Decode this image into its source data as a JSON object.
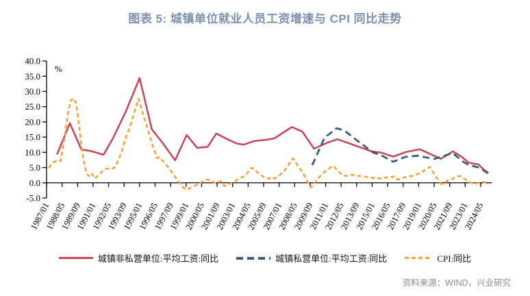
{
  "title": "图表 5: 城镇单位就业人员工资增速与 CPI 同比走势",
  "source": "资料来源：WIND，兴业研究",
  "unit_label": "%",
  "colors": {
    "title": "#7C90AC",
    "axis": "#000000",
    "source_text": "#8A8A8A",
    "wage_nonprivate": "#C4495C",
    "wage_private": "#3D5A78",
    "cpi": "#F2A33C"
  },
  "legend": [
    {
      "label": "城镇非私营单位:平均工资:同比",
      "series": "wage_nonprivate",
      "style": "solid"
    },
    {
      "label": "城镇私营单位:平均工资:同比",
      "series": "wage_private",
      "style": "long-dash"
    },
    {
      "label": "CPI:同比",
      "series": "cpi",
      "style": "short-dash"
    }
  ],
  "chart_data": {
    "type": "line",
    "title": "图表 5: 城镇单位就业人员工资增速与 CPI 同比走势",
    "xlabel": "",
    "ylabel": "%",
    "grid": "off",
    "legend_position": "bottom",
    "x_axis": {
      "unit": "decimal_year",
      "min": 1987.0,
      "max": 2025.1,
      "tick_interval_months": 16,
      "tick_labels": [
        "1987/01",
        "1988/05",
        "1989/09",
        "1991/01",
        "1992/05",
        "1993/09",
        "1995/01",
        "1996/05",
        "1997/09",
        "1999/01",
        "2000/05",
        "2001/09",
        "2003/01",
        "2004/05",
        "2005/09",
        "2007/01",
        "2008/05",
        "2009/09",
        "2011/01",
        "2012/05",
        "2013/09",
        "2015/01",
        "2016/05",
        "2017/09",
        "2019/01",
        "2020/05",
        "2021/09",
        "2023/01",
        "2024/05"
      ]
    },
    "y_axis": {
      "min": -5.0,
      "max": 40.0,
      "tick_step": 5.0,
      "ticks": [
        "40.0",
        "35.0",
        "30.0",
        "25.0",
        "20.0",
        "15.0",
        "10.0",
        "5.0",
        "0.0",
        "-5.0"
      ],
      "unit": "%"
    },
    "series": [
      {
        "name": "城镇非私营单位:平均工资:同比",
        "key": "wage_nonprivate",
        "color": "#C4495C",
        "line_style": "solid",
        "dash": null,
        "points": [
          [
            1987.9,
            9.3
          ],
          [
            1989.0,
            19.6
          ],
          [
            1990.0,
            10.9
          ],
          [
            1990.85,
            10.4
          ],
          [
            1991.9,
            9.2
          ],
          [
            1992.75,
            14.9
          ],
          [
            1993.8,
            23.3
          ],
          [
            1995.0,
            34.4
          ],
          [
            1996.05,
            17.6
          ],
          [
            1997.0,
            13.0
          ],
          [
            1998.05,
            7.4
          ],
          [
            1999.05,
            15.7
          ],
          [
            1999.95,
            11.5
          ],
          [
            2000.85,
            11.8
          ],
          [
            2001.6,
            16.2
          ],
          [
            2002.5,
            14.4
          ],
          [
            2003.35,
            12.9
          ],
          [
            2003.95,
            12.5
          ],
          [
            2004.85,
            13.7
          ],
          [
            2005.85,
            14.1
          ],
          [
            2006.6,
            14.6
          ],
          [
            2007.4,
            16.6
          ],
          [
            2008.1,
            18.3
          ],
          [
            2009.0,
            16.8
          ],
          [
            2010.0,
            11.2
          ],
          [
            2011.1,
            13.1
          ],
          [
            2012.0,
            14.3
          ],
          [
            2013.0,
            13.0
          ],
          [
            2014.0,
            11.6
          ],
          [
            2014.9,
            10.4
          ],
          [
            2015.8,
            9.9
          ],
          [
            2016.8,
            8.6
          ],
          [
            2017.9,
            10.1
          ],
          [
            2019.1,
            11.0
          ],
          [
            2019.9,
            9.6
          ],
          [
            2020.9,
            7.9
          ],
          [
            2021.95,
            10.3
          ],
          [
            2022.7,
            8.5
          ],
          [
            2023.3,
            6.6
          ],
          [
            2023.85,
            6.2
          ],
          [
            2024.15,
            6.0
          ],
          [
            2024.6,
            4.3
          ],
          [
            2025.0,
            3.2
          ]
        ]
      },
      {
        "name": "城镇私营单位:平均工资:同比",
        "key": "wage_private",
        "color": "#3D5A78",
        "line_style": "dashed",
        "dash": [
          10,
          6
        ],
        "points": [
          [
            2009.85,
            5.8
          ],
          [
            2010.9,
            14.8
          ],
          [
            2011.95,
            17.9
          ],
          [
            2012.6,
            17.2
          ],
          [
            2013.5,
            14.5
          ],
          [
            2014.4,
            11.9
          ],
          [
            2015.05,
            10.0
          ],
          [
            2015.8,
            9.0
          ],
          [
            2016.8,
            6.9
          ],
          [
            2017.85,
            8.5
          ],
          [
            2018.95,
            8.9
          ],
          [
            2020.3,
            7.8
          ],
          [
            2020.95,
            8.5
          ],
          [
            2021.9,
            9.8
          ],
          [
            2022.8,
            7.0
          ],
          [
            2023.3,
            5.9
          ],
          [
            2023.85,
            5.3
          ],
          [
            2024.3,
            4.9
          ],
          [
            2024.75,
            3.6
          ],
          [
            2025.0,
            3.1
          ]
        ]
      },
      {
        "name": "CPI:同比",
        "key": "cpi",
        "color": "#F2A33C",
        "line_style": "dashed",
        "dash": [
          6,
          4
        ],
        "points": [
          [
            1987.2,
            4.8
          ],
          [
            1987.4,
            6.1
          ],
          [
            1987.7,
            7.0
          ],
          [
            1988.0,
            7.3
          ],
          [
            1988.2,
            7.1
          ],
          [
            1988.5,
            13.8
          ],
          [
            1988.8,
            22.0
          ],
          [
            1989.05,
            26.8
          ],
          [
            1989.3,
            27.8
          ],
          [
            1989.55,
            26.0
          ],
          [
            1989.9,
            15.6
          ],
          [
            1990.15,
            8.0
          ],
          [
            1990.45,
            2.9
          ],
          [
            1990.65,
            2.2
          ],
          [
            1990.85,
            3.2
          ],
          [
            1991.15,
            1.4
          ],
          [
            1991.5,
            2.6
          ],
          [
            1991.95,
            4.4
          ],
          [
            1992.15,
            4.7
          ],
          [
            1992.5,
            4.4
          ],
          [
            1992.9,
            5.2
          ],
          [
            1993.4,
            9.5
          ],
          [
            1993.85,
            15.2
          ],
          [
            1994.1,
            17.5
          ],
          [
            1994.5,
            22.5
          ],
          [
            1994.9,
            27.6
          ],
          [
            1995.5,
            20.1
          ],
          [
            1996.1,
            12.6
          ],
          [
            1996.5,
            8.1
          ],
          [
            1996.7,
            8.4
          ],
          [
            1997.3,
            5.9
          ],
          [
            1997.95,
            2.5
          ],
          [
            1998.35,
            0.5
          ],
          [
            1998.7,
            -1.4
          ],
          [
            1999.05,
            -2.3
          ],
          [
            1999.4,
            -1.6
          ],
          [
            1999.8,
            -0.9
          ],
          [
            2000.3,
            0.2
          ],
          [
            2000.8,
            1.1
          ],
          [
            2001.3,
            0.4
          ],
          [
            2001.6,
            -0.3
          ],
          [
            2001.95,
            0.6
          ],
          [
            2002.3,
            -1.1
          ],
          [
            2002.9,
            -0.1
          ],
          [
            2003.5,
            1.2
          ],
          [
            2004.1,
            2.4
          ],
          [
            2004.65,
            5.0
          ],
          [
            2005.3,
            2.9
          ],
          [
            2005.65,
            2.0
          ],
          [
            2006.1,
            1.3
          ],
          [
            2006.35,
            1.9
          ],
          [
            2006.6,
            1.4
          ],
          [
            2007.1,
            2.7
          ],
          [
            2007.45,
            3.9
          ],
          [
            2007.85,
            6.2
          ],
          [
            2008.2,
            8.0
          ],
          [
            2008.7,
            5.1
          ],
          [
            2009.05,
            3.2
          ],
          [
            2009.45,
            0.3
          ],
          [
            2009.7,
            -1.5
          ],
          [
            2009.95,
            -0.9
          ],
          [
            2010.2,
            0.9
          ],
          [
            2010.7,
            2.9
          ],
          [
            2010.95,
            3.7
          ],
          [
            2011.3,
            4.8
          ],
          [
            2011.7,
            5.5
          ],
          [
            2012.0,
            4.1
          ],
          [
            2012.45,
            2.5
          ],
          [
            2012.8,
            2.2
          ],
          [
            2013.15,
            2.7
          ],
          [
            2013.6,
            2.4
          ],
          [
            2014.1,
            2.1
          ],
          [
            2014.6,
            1.9
          ],
          [
            2014.95,
            1.6
          ],
          [
            2015.4,
            1.7
          ],
          [
            2015.8,
            1.2
          ],
          [
            2016.1,
            1.7
          ],
          [
            2016.5,
            1.8
          ],
          [
            2016.95,
            2.1
          ],
          [
            2017.2,
            1.0
          ],
          [
            2017.6,
            1.6
          ],
          [
            2018.1,
            2.1
          ],
          [
            2018.6,
            2.3
          ],
          [
            2019.3,
            3.6
          ],
          [
            2019.95,
            5.2
          ],
          [
            2020.4,
            2.5
          ],
          [
            2020.7,
            0.8
          ],
          [
            2020.95,
            -0.4
          ],
          [
            2021.2,
            -0.1
          ],
          [
            2021.5,
            0.8
          ],
          [
            2021.8,
            1.1
          ],
          [
            2022.1,
            1.7
          ],
          [
            2022.55,
            2.3
          ],
          [
            2023.05,
            1.0
          ],
          [
            2023.4,
            0.2
          ],
          [
            2023.8,
            -0.4
          ],
          [
            2024.1,
            -0.1
          ],
          [
            2024.45,
            0.4
          ],
          [
            2024.7,
            0.1
          ],
          [
            2024.95,
            0.0
          ]
        ]
      }
    ]
  }
}
